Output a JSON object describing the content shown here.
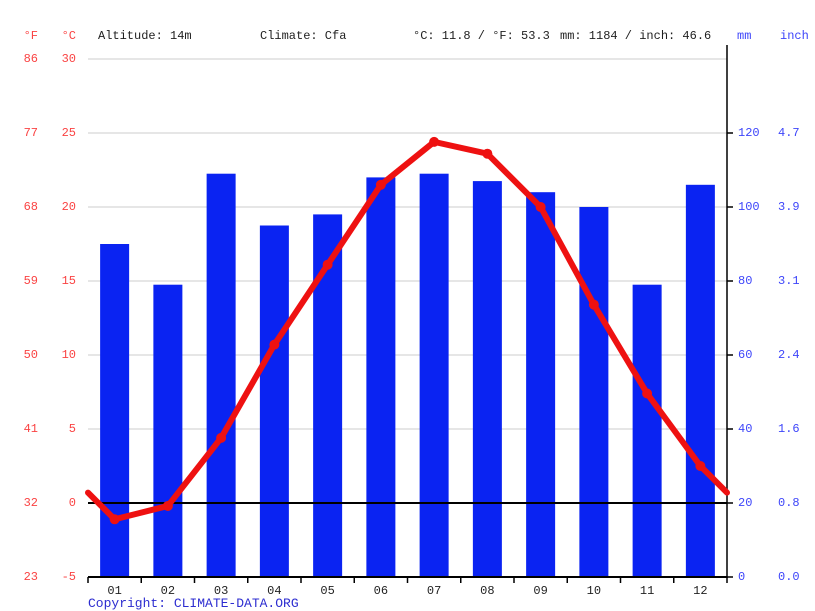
{
  "header": {
    "f_unit": "°F",
    "c_unit": "°C",
    "altitude": "Altitude: 14m",
    "climate": "Climate: Cfa",
    "temperature_summary": "°C: 11.8 / °F: 53.3",
    "precipitation_summary": "mm: 1184 / inch: 46.6",
    "mm_unit": "mm",
    "inch_unit": "inch"
  },
  "axes": {
    "left_fahrenheit": [
      "86",
      "77",
      "68",
      "59",
      "50",
      "41",
      "32",
      "23"
    ],
    "left_celsius": [
      "30",
      "25",
      "20",
      "15",
      "10",
      "5",
      "0",
      "-5"
    ],
    "right_mm": [
      "120",
      "100",
      "80",
      "60",
      "40",
      "20",
      "0"
    ],
    "right_inch": [
      "4.7",
      "3.9",
      "3.1",
      "2.4",
      "1.6",
      "0.8",
      "0.0"
    ]
  },
  "chart_data": {
    "type": "bar",
    "subtype": "climate-combo-bar-line",
    "categories": [
      "01",
      "02",
      "03",
      "04",
      "05",
      "06",
      "07",
      "08",
      "09",
      "10",
      "11",
      "12"
    ],
    "series": [
      {
        "name": "Precipitation (mm)",
        "type": "bar",
        "color": "#0a23f2",
        "values": [
          90,
          79,
          109,
          95,
          98,
          108,
          109,
          107,
          104,
          100,
          79,
          106
        ]
      },
      {
        "name": "Mean temperature (°C)",
        "type": "line",
        "color": "#ee1111",
        "values": [
          -1.1,
          -0.2,
          4.4,
          10.7,
          16.1,
          21.5,
          24.4,
          23.6,
          20.0,
          13.4,
          7.4,
          2.5
        ],
        "edge_value": 0.7
      }
    ],
    "ylim_left_celsius": [
      -5,
      30
    ],
    "ylim_right_mm": [
      0,
      140
    ],
    "celsius_gridlines": [
      30,
      25,
      20,
      15,
      10,
      5
    ],
    "zero_line_celsius": 0,
    "grid": true,
    "legend": false
  },
  "footer": {
    "copyright": "Copyright: CLIMATE-DATA.ORG"
  },
  "colors": {
    "bar_blue": "#0a23f2",
    "line_red": "#ee1111",
    "red_label": "#fa4343",
    "blue_label": "#3d45fa",
    "copyright_blue": "#2d2dd0",
    "grid_gray": "#cccccc",
    "text_dark": "#1f1f1f",
    "axis_black": "#000000"
  }
}
